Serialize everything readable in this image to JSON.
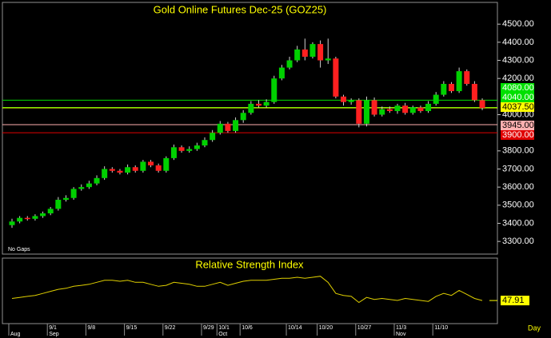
{
  "chart_data": [
    {
      "type": "candlestick",
      "title": "Gold Online Futures Dec-25 (GOZ25)",
      "annotation": "No Gaps",
      "period": "Day",
      "categories": [
        null,
        null,
        null,
        null,
        null,
        "9/1",
        null,
        null,
        null,
        null,
        "9/8",
        null,
        null,
        null,
        null,
        "9/15",
        null,
        null,
        null,
        null,
        "9/22",
        null,
        null,
        null,
        null,
        "9/29",
        null,
        "10/1",
        null,
        null,
        "10/6",
        null,
        null,
        null,
        null,
        null,
        "10/14",
        null,
        null,
        null,
        "10/20",
        null,
        null,
        null,
        null,
        "10/27",
        null,
        null,
        null,
        null,
        "11/3",
        null,
        null,
        null,
        null,
        "11/10",
        null,
        null,
        null,
        null,
        null,
        null
      ],
      "months": [
        "Aug",
        null,
        null,
        null,
        null,
        "Sep",
        null,
        null,
        null,
        null,
        null,
        null,
        null,
        null,
        null,
        null,
        null,
        null,
        null,
        null,
        null,
        null,
        null,
        null,
        null,
        null,
        null,
        "Oct",
        null,
        null,
        null,
        null,
        null,
        null,
        null,
        null,
        null,
        null,
        null,
        null,
        null,
        null,
        null,
        null,
        null,
        null,
        null,
        null,
        null,
        null,
        "Nov",
        null,
        null,
        null,
        null,
        null,
        null,
        null,
        null,
        null,
        null,
        null
      ],
      "open": [
        3390,
        3410,
        3430,
        3425,
        3440,
        3455,
        3480,
        3530,
        3540,
        3590,
        3600,
        3620,
        3650,
        3700,
        3690,
        3680,
        3710,
        3690,
        3740,
        3720,
        3690,
        3760,
        3820,
        3800,
        3810,
        3830,
        3860,
        3900,
        3950,
        3910,
        3970,
        4010,
        4060,
        4050,
        4070,
        4200,
        4260,
        4300,
        4360,
        4320,
        4390,
        4300,
        4310,
        4100,
        4070,
        4080,
        3950,
        4080,
        4000,
        4030,
        4020,
        4050,
        4010,
        4040,
        4020,
        4060,
        4110,
        4170,
        4130,
        4240,
        4170,
        4080
      ],
      "high": [
        3425,
        3440,
        3440,
        3450,
        3465,
        3490,
        3545,
        3555,
        3600,
        3615,
        3635,
        3665,
        3715,
        3710,
        3700,
        3725,
        3720,
        3750,
        3750,
        3730,
        3770,
        3835,
        3830,
        3825,
        3845,
        3875,
        3915,
        3965,
        3960,
        3985,
        4025,
        4075,
        4080,
        4085,
        4215,
        4275,
        4320,
        4380,
        4420,
        4400,
        4410,
        4420,
        4320,
        4110,
        4090,
        4090,
        4100,
        4095,
        4045,
        4045,
        4060,
        4065,
        4050,
        4050,
        4075,
        4125,
        4185,
        4180,
        4260,
        4250,
        4185,
        4090
      ],
      "low": [
        3375,
        3400,
        3415,
        3415,
        3430,
        3445,
        3470,
        3520,
        3530,
        3580,
        3590,
        3610,
        3640,
        3680,
        3670,
        3670,
        3680,
        3680,
        3710,
        3680,
        3680,
        3750,
        3790,
        3790,
        3800,
        3820,
        3850,
        3890,
        3900,
        3900,
        3955,
        4000,
        4040,
        4040,
        4060,
        4190,
        4250,
        4290,
        4300,
        4310,
        4260,
        4280,
        4090,
        4050,
        4055,
        3930,
        3935,
        3990,
        3990,
        4010,
        4005,
        4000,
        4000,
        4010,
        4010,
        4050,
        4100,
        4120,
        4120,
        4160,
        4070,
        4025
      ],
      "close": [
        3410,
        3430,
        3425,
        3440,
        3455,
        3480,
        3530,
        3540,
        3590,
        3600,
        3620,
        3650,
        3700,
        3690,
        3680,
        3710,
        3690,
        3740,
        3720,
        3690,
        3760,
        3820,
        3800,
        3810,
        3830,
        3860,
        3900,
        3950,
        3910,
        3970,
        4010,
        4060,
        4050,
        4070,
        4200,
        4260,
        4300,
        4360,
        4320,
        4390,
        4300,
        4310,
        4100,
        4070,
        4080,
        3950,
        4080,
        4000,
        4030,
        4020,
        4050,
        4010,
        4040,
        4020,
        4060,
        4110,
        4170,
        4130,
        4240,
        4170,
        4080,
        4037.5
      ],
      "up_color": "#00d000",
      "down_color": "#ff2020",
      "ylim": [
        3230,
        4620
      ],
      "yticks": [
        {
          "value": 3300,
          "label": "3300.00"
        },
        {
          "value": 3400,
          "label": "3400.00"
        },
        {
          "value": 3500,
          "label": "3500.00"
        },
        {
          "value": 3600,
          "label": "3600.00"
        },
        {
          "value": 3700,
          "label": "3700.00"
        },
        {
          "value": 3800,
          "label": "3800.00"
        },
        {
          "value": 4000,
          "label": "4000.00"
        },
        {
          "value": 4200,
          "label": "4200.00"
        },
        {
          "value": 4300,
          "label": "4300.00"
        },
        {
          "value": 4400,
          "label": "4400.00"
        },
        {
          "value": 4500,
          "label": "4500.00"
        }
      ],
      "price_lines": [
        {
          "value": 4080,
          "label": "4080.00",
          "color": "#00e000"
        },
        {
          "value": 4040,
          "label": "4040.00",
          "color": "#00e000"
        },
        {
          "value": 4037.5,
          "label": "4037.50",
          "color": "#ffff00"
        },
        {
          "value": 3945,
          "label": "3945.00",
          "color": "#ffb0b0"
        },
        {
          "value": 3900,
          "label": "3900.00",
          "color": "#e00000"
        }
      ]
    },
    {
      "type": "line",
      "title": "Relative Strength Index",
      "color": "#e0d000",
      "ylim": [
        25,
        90
      ],
      "values": [
        50,
        51,
        52,
        53,
        55,
        57,
        59,
        60,
        62,
        63,
        64,
        66,
        68,
        68,
        67,
        68,
        66,
        66,
        64,
        62,
        63,
        66,
        65,
        64,
        62,
        62,
        64,
        66,
        63,
        65,
        67,
        68,
        68,
        68,
        69,
        70,
        70,
        71,
        70,
        71,
        72,
        66,
        55,
        53,
        52,
        46,
        51,
        49,
        50,
        49,
        48,
        50,
        49,
        48,
        47,
        52,
        55,
        53,
        58,
        54,
        50,
        47.91
      ]
    }
  ]
}
